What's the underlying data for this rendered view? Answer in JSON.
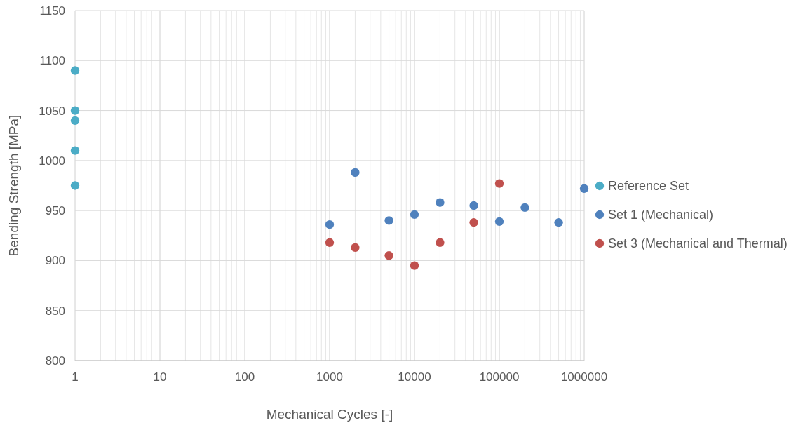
{
  "chart_data": {
    "type": "scatter",
    "xlabel": "Mechanical Cycles [-]",
    "ylabel": "Bending Strength [MPa]",
    "log": "x",
    "grid": true,
    "legend": "right",
    "marker": "circle",
    "xlim": [
      1,
      1000000
    ],
    "ylim": [
      800,
      1150
    ],
    "xticks": [
      1,
      {
        "value": 2,
        "label": null
      },
      {
        "value": 3,
        "label": null
      },
      {
        "value": 4,
        "label": null
      },
      {
        "value": 5,
        "label": null
      },
      {
        "value": 6,
        "label": null
      },
      {
        "value": 7,
        "label": null
      },
      {
        "value": 8,
        "label": null
      },
      {
        "value": 9,
        "label": null
      },
      10,
      {
        "value": 20,
        "label": null
      },
      {
        "value": 30,
        "label": null
      },
      {
        "value": 40,
        "label": null
      },
      {
        "value": 50,
        "label": null
      },
      {
        "value": 60,
        "label": null
      },
      {
        "value": 70,
        "label": null
      },
      {
        "value": 80,
        "label": null
      },
      {
        "value": 90,
        "label": null
      },
      100,
      {
        "value": 200,
        "label": null
      },
      {
        "value": 300,
        "label": null
      },
      {
        "value": 400,
        "label": null
      },
      {
        "value": 500,
        "label": null
      },
      {
        "value": 600,
        "label": null
      },
      {
        "value": 700,
        "label": null
      },
      {
        "value": 800,
        "label": null
      },
      {
        "value": 900,
        "label": null
      },
      1000,
      {
        "value": 2000,
        "label": null
      },
      {
        "value": 3000,
        "label": null
      },
      {
        "value": 4000,
        "label": null
      },
      {
        "value": 5000,
        "label": null
      },
      {
        "value": 6000,
        "label": null
      },
      {
        "value": 7000,
        "label": null
      },
      {
        "value": 8000,
        "label": null
      },
      {
        "value": 9000,
        "label": null
      },
      10000,
      {
        "value": 20000,
        "label": null
      },
      {
        "value": 30000,
        "label": null
      },
      {
        "value": 40000,
        "label": null
      },
      {
        "value": 50000,
        "label": null
      },
      {
        "value": 60000,
        "label": null
      },
      {
        "value": 70000,
        "label": null
      },
      {
        "value": 80000,
        "label": null
      },
      {
        "value": 90000,
        "label": null
      },
      100000,
      {
        "value": 200000,
        "label": null
      },
      {
        "value": 300000,
        "label": null
      },
      {
        "value": 400000,
        "label": null
      },
      {
        "value": 500000,
        "label": null
      },
      {
        "value": 600000,
        "label": null
      },
      {
        "value": 700000,
        "label": null
      },
      {
        "value": 800000,
        "label": null
      },
      {
        "value": 900000,
        "label": null
      },
      1000000
    ],
    "yticks": [
      800,
      850,
      900,
      950,
      1000,
      1050,
      1100,
      1150
    ],
    "series": [
      {
        "name": "Reference Set",
        "color": "#4bacc6",
        "x": [
          1,
          1,
          1,
          1,
          1
        ],
        "values": [
          1090,
          1050,
          1040,
          1010,
          975
        ]
      },
      {
        "name": "Set 1 (Mechanical)",
        "color": "#4f81bd",
        "x": [
          1000,
          2000,
          5000,
          10000,
          20000,
          50000,
          100000,
          200000,
          500000,
          1000000
        ],
        "values": [
          936,
          988,
          940,
          946,
          958,
          955,
          939,
          953,
          938,
          972
        ]
      },
      {
        "name": "Set 3 (Mechanical and Thermal)",
        "color": "#c0504d",
        "x": [
          1000,
          2000,
          5000,
          10000,
          20000,
          50000,
          100000
        ],
        "values": [
          918,
          913,
          905,
          895,
          918,
          938,
          977
        ]
      }
    ]
  }
}
